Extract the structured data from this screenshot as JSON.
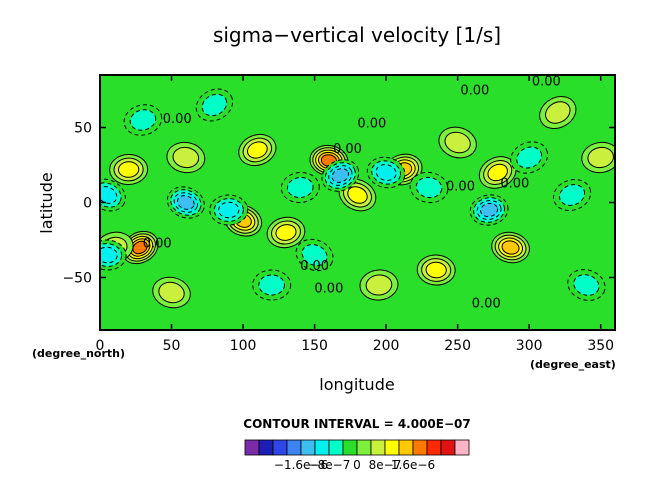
{
  "chart_data": {
    "type": "heatmap",
    "title": "sigma−vertical velocity [1/s]",
    "xlabel": "longitude",
    "ylabel": "latitude",
    "x_unit": "(degree_east)",
    "y_unit": "(degree_north)",
    "xlim": [
      0,
      360
    ],
    "ylim": [
      -85,
      85
    ],
    "x_ticks": [
      0,
      50,
      100,
      150,
      200,
      250,
      300,
      350
    ],
    "x_tick_labels": [
      "0",
      "50",
      "100",
      "150",
      "200",
      "250",
      "300",
      "350"
    ],
    "y_ticks": [
      50,
      0,
      -50
    ],
    "y_tick_labels": [
      "50",
      "0",
      "−50"
    ],
    "contour_interval_text": "CONTOUR INTERVAL = 4.000E−07",
    "contour_labels": [
      {
        "text": "0.00",
        "lon": 262,
        "lat": 72
      },
      {
        "text": "0.00",
        "lon": 312,
        "lat": 78
      },
      {
        "text": "0.00",
        "lon": 190,
        "lat": 50
      },
      {
        "text": "0.00",
        "lon": 173,
        "lat": 33
      },
      {
        "text": "0.00",
        "lon": 54,
        "lat": 53
      },
      {
        "text": "0.00",
        "lon": 252,
        "lat": 8
      },
      {
        "text": "0.00",
        "lon": 290,
        "lat": 10
      },
      {
        "text": "0.00",
        "lon": 40,
        "lat": -30
      },
      {
        "text": "0.00",
        "lon": 150,
        "lat": -45
      },
      {
        "text": "0.00",
        "lon": 160,
        "lat": -60
      },
      {
        "text": "0.00",
        "lon": 270,
        "lat": -70
      }
    ],
    "colorbar": {
      "colors": [
        "#7a2ca8",
        "#1e1eb4",
        "#2e46e6",
        "#3c82f0",
        "#3cbef0",
        "#00f0f0",
        "#00ffc8",
        "#2adf2a",
        "#7cf03c",
        "#c8f03c",
        "#ffff00",
        "#ffc800",
        "#ff7800",
        "#ff2800",
        "#e01414",
        "#ffb4c8"
      ],
      "tick_labels": [
        "−1.6e−6",
        "−8e−7",
        "0",
        "8e−7",
        "1.6e−6"
      ],
      "tick_values": [
        -1.6e-06,
        -8e-07,
        0,
        8e-07,
        1.6e-06
      ]
    },
    "features": [
      {
        "lon": 28,
        "lat": -30,
        "value": 2e-06
      },
      {
        "lon": 160,
        "lat": 28,
        "value": 2e-06
      },
      {
        "lon": 212,
        "lat": 22,
        "value": 1.6e-06
      },
      {
        "lon": 100,
        "lat": -12,
        "value": 1.4e-06
      },
      {
        "lon": 20,
        "lat": 22,
        "value": 1e-06
      },
      {
        "lon": 278,
        "lat": 20,
        "value": 1.2e-06
      },
      {
        "lon": 287,
        "lat": -30,
        "value": 1.4e-06
      },
      {
        "lon": 130,
        "lat": -20,
        "value": 1e-06
      },
      {
        "lon": 180,
        "lat": 5,
        "value": 1e-06
      },
      {
        "lon": 235,
        "lat": -45,
        "value": 1e-06
      },
      {
        "lon": 110,
        "lat": 35,
        "value": 1e-06
      },
      {
        "lon": 250,
        "lat": 40,
        "value": 8e-07
      },
      {
        "lon": 195,
        "lat": -55,
        "value": 8e-07
      },
      {
        "lon": 320,
        "lat": 60,
        "value": 8e-07
      },
      {
        "lon": 60,
        "lat": 30,
        "value": 8e-07
      },
      {
        "lon": 10,
        "lat": -30,
        "value": 8e-07
      },
      {
        "lon": 60,
        "lat": 0,
        "value": -1.4e-06
      },
      {
        "lon": 90,
        "lat": -5,
        "value": -1.2e-06
      },
      {
        "lon": 168,
        "lat": 18,
        "value": -1.6e-06
      },
      {
        "lon": 200,
        "lat": 20,
        "value": -1e-06
      },
      {
        "lon": 272,
        "lat": -5,
        "value": -1.4e-06
      },
      {
        "lon": 5,
        "lat": 5,
        "value": -1e-06
      },
      {
        "lon": 5,
        "lat": -35,
        "value": -1e-06
      },
      {
        "lon": 330,
        "lat": 5,
        "value": -8e-07
      },
      {
        "lon": 340,
        "lat": -55,
        "value": -8e-07
      },
      {
        "lon": 140,
        "lat": 10,
        "value": -8e-07
      },
      {
        "lon": 80,
        "lat": 65,
        "value": -8e-07
      },
      {
        "lon": 230,
        "lat": 10,
        "value": -8e-07
      },
      {
        "lon": 30,
        "lat": 55,
        "value": -6e-07
      },
      {
        "lon": 150,
        "lat": -35,
        "value": -6e-07
      },
      {
        "lon": 120,
        "lat": -55,
        "value": -6e-07
      },
      {
        "lon": 300,
        "lat": 30,
        "value": -6e-07
      },
      {
        "lon": 50,
        "lat": -60,
        "value": 6e-07
      },
      {
        "lon": 350,
        "lat": 30,
        "value": 6e-07
      }
    ]
  }
}
